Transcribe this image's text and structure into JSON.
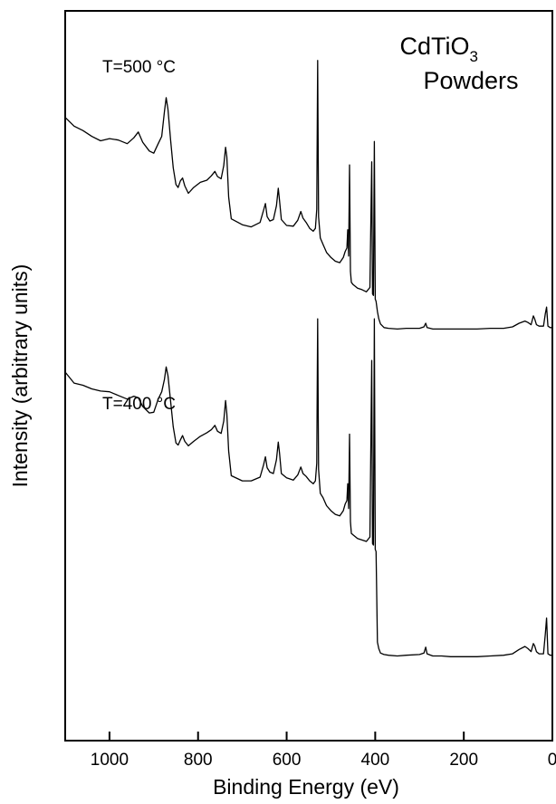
{
  "chart_data": {
    "type": "line",
    "title": "CdTiO",
    "title_subscript": "3",
    "subtitle": "Powders",
    "xlabel": "Binding Energy (eV)",
    "ylabel": "Intensity (arbitrary units)",
    "xlim": [
      1100,
      0
    ],
    "x_reversed": true,
    "ylim": [
      0,
      100
    ],
    "xticks": [
      1000,
      800,
      600,
      400,
      200,
      0
    ],
    "xtick_labels": [
      "1000",
      "800",
      "600",
      "400",
      "200",
      "0"
    ],
    "grid": false,
    "series": [
      {
        "name": "T=500 °C",
        "points": [
          [
            1100,
            85.4
          ],
          [
            1080,
            84.2
          ],
          [
            1060,
            83.6
          ],
          [
            1040,
            82.8
          ],
          [
            1020,
            82.2
          ],
          [
            1000,
            82.5
          ],
          [
            980,
            82.3
          ],
          [
            960,
            81.8
          ],
          [
            945,
            82.6
          ],
          [
            935,
            83.4
          ],
          [
            925,
            82.0
          ],
          [
            910,
            80.8
          ],
          [
            900,
            80.5
          ],
          [
            890,
            81.8
          ],
          [
            882,
            82.8
          ],
          [
            876,
            86.2
          ],
          [
            872,
            88.1
          ],
          [
            868,
            86.5
          ],
          [
            862,
            82.3
          ],
          [
            856,
            78.5
          ],
          [
            850,
            76.2
          ],
          [
            845,
            75.8
          ],
          [
            840,
            76.7
          ],
          [
            835,
            77.1
          ],
          [
            830,
            76.0
          ],
          [
            822,
            75.0
          ],
          [
            810,
            75.8
          ],
          [
            795,
            76.5
          ],
          [
            780,
            76.8
          ],
          [
            770,
            77.4
          ],
          [
            762,
            78.0
          ],
          [
            756,
            77.3
          ],
          [
            748,
            77.0
          ],
          [
            742,
            78.8
          ],
          [
            738,
            81.3
          ],
          [
            735,
            80.0
          ],
          [
            731,
            74.5
          ],
          [
            725,
            71.5
          ],
          [
            700,
            70.7
          ],
          [
            680,
            70.4
          ],
          [
            660,
            71.0
          ],
          [
            652,
            72.7
          ],
          [
            648,
            73.6
          ],
          [
            644,
            71.8
          ],
          [
            638,
            71.2
          ],
          [
            630,
            71.4
          ],
          [
            623,
            73.3
          ],
          [
            619,
            75.7
          ],
          [
            616,
            74.0
          ],
          [
            612,
            71.4
          ],
          [
            600,
            70.6
          ],
          [
            585,
            70.5
          ],
          [
            575,
            71.3
          ],
          [
            568,
            72.5
          ],
          [
            563,
            71.6
          ],
          [
            556,
            71.0
          ],
          [
            548,
            70.2
          ],
          [
            540,
            69.8
          ],
          [
            535,
            70.2
          ],
          [
            532,
            72.8
          ],
          [
            530,
            93.2
          ],
          [
            528,
            71.8
          ],
          [
            524,
            68.9
          ],
          [
            518,
            68.0
          ],
          [
            510,
            66.9
          ],
          [
            500,
            66.2
          ],
          [
            490,
            65.7
          ],
          [
            480,
            65.5
          ],
          [
            472,
            66.2
          ],
          [
            468,
            67.0
          ],
          [
            464,
            67.5
          ],
          [
            462,
            70.0
          ],
          [
            460,
            66.4
          ],
          [
            458,
            78.9
          ],
          [
            456,
            64.3
          ],
          [
            454,
            62.8
          ],
          [
            450,
            62.5
          ],
          [
            440,
            62.0
          ],
          [
            430,
            61.8
          ],
          [
            420,
            61.5
          ],
          [
            412,
            62.1
          ],
          [
            408,
            79.3
          ],
          [
            406,
            61.2
          ],
          [
            404,
            61.0
          ],
          [
            402,
            82.1
          ],
          [
            400,
            60.5
          ],
          [
            398,
            60.2
          ],
          [
            395,
            58.8
          ],
          [
            392,
            57.8
          ],
          [
            388,
            57.1
          ],
          [
            380,
            56.6
          ],
          [
            370,
            56.5
          ],
          [
            350,
            56.4
          ],
          [
            330,
            56.5
          ],
          [
            300,
            56.5
          ],
          [
            290,
            56.7
          ],
          [
            286,
            57.2
          ],
          [
            283,
            56.6
          ],
          [
            270,
            56.4
          ],
          [
            250,
            56.4
          ],
          [
            230,
            56.4
          ],
          [
            200,
            56.4
          ],
          [
            170,
            56.4
          ],
          [
            140,
            56.5
          ],
          [
            110,
            56.5
          ],
          [
            90,
            56.7
          ],
          [
            75,
            57.2
          ],
          [
            62,
            57.5
          ],
          [
            55,
            57.3
          ],
          [
            48,
            57.0
          ],
          [
            43,
            58.2
          ],
          [
            40,
            57.8
          ],
          [
            36,
            57.0
          ],
          [
            30,
            56.8
          ],
          [
            25,
            56.8
          ],
          [
            20,
            56.8
          ],
          [
            16,
            58.5
          ],
          [
            13,
            59.4
          ],
          [
            10,
            56.8
          ],
          [
            5,
            56.6
          ],
          [
            0,
            56.6
          ]
        ]
      },
      {
        "name": "T=400 °C",
        "points": [
          [
            1100,
            50.5
          ],
          [
            1080,
            49.0
          ],
          [
            1060,
            48.7
          ],
          [
            1040,
            48.2
          ],
          [
            1020,
            47.9
          ],
          [
            1000,
            47.8
          ],
          [
            980,
            47.3
          ],
          [
            960,
            46.8
          ],
          [
            945,
            47.2
          ],
          [
            935,
            47.0
          ],
          [
            925,
            45.8
          ],
          [
            910,
            44.9
          ],
          [
            900,
            45.0
          ],
          [
            890,
            46.8
          ],
          [
            882,
            47.8
          ],
          [
            876,
            49.5
          ],
          [
            872,
            51.2
          ],
          [
            868,
            50.0
          ],
          [
            862,
            46.5
          ],
          [
            856,
            43.0
          ],
          [
            850,
            40.8
          ],
          [
            845,
            40.5
          ],
          [
            840,
            41.2
          ],
          [
            835,
            41.8
          ],
          [
            830,
            41.0
          ],
          [
            822,
            40.4
          ],
          [
            810,
            41.0
          ],
          [
            795,
            41.7
          ],
          [
            780,
            42.2
          ],
          [
            770,
            42.6
          ],
          [
            762,
            43.2
          ],
          [
            756,
            42.4
          ],
          [
            748,
            42.1
          ],
          [
            742,
            43.8
          ],
          [
            738,
            46.6
          ],
          [
            735,
            44.8
          ],
          [
            731,
            39.7
          ],
          [
            725,
            36.3
          ],
          [
            700,
            35.6
          ],
          [
            680,
            35.6
          ],
          [
            660,
            36.1
          ],
          [
            652,
            37.8
          ],
          [
            648,
            38.9
          ],
          [
            644,
            37.4
          ],
          [
            638,
            36.8
          ],
          [
            630,
            36.6
          ],
          [
            623,
            38.5
          ],
          [
            619,
            40.9
          ],
          [
            616,
            39.4
          ],
          [
            612,
            36.6
          ],
          [
            600,
            36.0
          ],
          [
            585,
            35.7
          ],
          [
            575,
            36.4
          ],
          [
            568,
            37.5
          ],
          [
            563,
            36.6
          ],
          [
            556,
            36.2
          ],
          [
            548,
            35.6
          ],
          [
            540,
            35.2
          ],
          [
            535,
            35.6
          ],
          [
            532,
            38.0
          ],
          [
            530,
            57.8
          ],
          [
            528,
            37.2
          ],
          [
            524,
            33.9
          ],
          [
            518,
            33.3
          ],
          [
            510,
            32.2
          ],
          [
            500,
            31.5
          ],
          [
            490,
            31.0
          ],
          [
            480,
            30.8
          ],
          [
            472,
            31.5
          ],
          [
            468,
            32.4
          ],
          [
            464,
            32.9
          ],
          [
            462,
            35.2
          ],
          [
            460,
            31.8
          ],
          [
            458,
            42.0
          ],
          [
            456,
            30.0
          ],
          [
            454,
            28.4
          ],
          [
            450,
            28.2
          ],
          [
            440,
            27.7
          ],
          [
            430,
            27.5
          ],
          [
            420,
            27.3
          ],
          [
            412,
            27.9
          ],
          [
            408,
            52.1
          ],
          [
            406,
            27.0
          ],
          [
            404,
            26.8
          ],
          [
            402,
            57.8
          ],
          [
            400,
            26.2
          ],
          [
            398,
            25.9
          ],
          [
            395,
            13.5
          ],
          [
            392,
            12.6
          ],
          [
            388,
            12.0
          ],
          [
            380,
            11.8
          ],
          [
            370,
            11.7
          ],
          [
            350,
            11.6
          ],
          [
            330,
            11.7
          ],
          [
            300,
            11.8
          ],
          [
            290,
            12.0
          ],
          [
            286,
            12.8
          ],
          [
            283,
            11.9
          ],
          [
            270,
            11.6
          ],
          [
            250,
            11.6
          ],
          [
            230,
            11.5
          ],
          [
            200,
            11.5
          ],
          [
            170,
            11.5
          ],
          [
            140,
            11.6
          ],
          [
            110,
            11.7
          ],
          [
            90,
            11.9
          ],
          [
            75,
            12.5
          ],
          [
            62,
            12.9
          ],
          [
            55,
            12.6
          ],
          [
            48,
            12.2
          ],
          [
            43,
            13.3
          ],
          [
            40,
            13.0
          ],
          [
            36,
            12.2
          ],
          [
            30,
            11.9
          ],
          [
            25,
            11.9
          ],
          [
            20,
            11.9
          ],
          [
            16,
            14.6
          ],
          [
            13,
            16.8
          ],
          [
            10,
            11.9
          ],
          [
            5,
            11.7
          ],
          [
            0,
            11.7
          ]
        ]
      }
    ]
  }
}
